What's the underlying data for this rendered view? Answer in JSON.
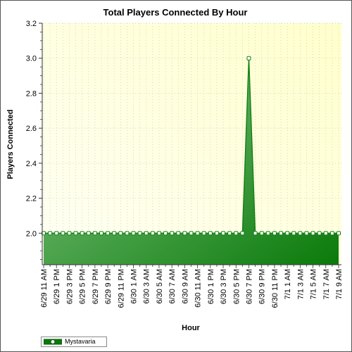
{
  "chart_data": {
    "type": "area",
    "title": "Total Players Connected By Hour",
    "xlabel": "Hour",
    "ylabel": "Players Connected",
    "ylim": [
      1.82,
      3.2
    ],
    "yticks": [
      "2.0",
      "2.2",
      "2.4",
      "2.6",
      "2.8",
      "3.0",
      "3.2"
    ],
    "yminor_step": 0.05,
    "grid": true,
    "legend_position": "bottom-left",
    "x": [
      "6/29 11 AM",
      "6/29 12 PM",
      "6/29 1 PM",
      "6/29 2 PM",
      "6/29 3 PM",
      "6/29 4 PM",
      "6/29 5 PM",
      "6/29 6 PM",
      "6/29 7 PM",
      "6/29 8 PM",
      "6/29 9 PM",
      "6/29 10 PM",
      "6/29 11 PM",
      "6/30 12 AM",
      "6/30 1 AM",
      "6/30 2 AM",
      "6/30 3 AM",
      "6/30 4 AM",
      "6/30 5 AM",
      "6/30 6 AM",
      "6/30 7 AM",
      "6/30 8 AM",
      "6/30 9 AM",
      "6/30 10 AM",
      "6/30 11 AM",
      "6/30 12 PM",
      "6/30 1 PM",
      "6/30 2 PM",
      "6/30 3 PM",
      "6/30 4 PM",
      "6/30 5 PM",
      "6/30 6 PM",
      "6/30 7 PM",
      "6/30 8 PM",
      "6/30 9 PM",
      "6/30 10 PM",
      "6/30 11 PM",
      "7/1 12 AM",
      "7/1 1 AM",
      "7/1 2 AM",
      "7/1 3 AM",
      "7/1 4 AM",
      "7/1 5 AM",
      "7/1 6 AM",
      "7/1 7 AM",
      "7/1 8 AM",
      "7/1 9 AM"
    ],
    "xtick_labels": [
      "6/29 11 AM",
      "6/29 1 PM",
      "6/29 3 PM",
      "6/29 5 PM",
      "6/29 7 PM",
      "6/29 9 PM",
      "6/29 11 PM",
      "6/30 1 AM",
      "6/30 3 AM",
      "6/30 5 AM",
      "6/30 7 AM",
      "6/30 9 AM",
      "6/30 11 AM",
      "6/30 1 PM",
      "6/30 3 PM",
      "6/30 5 PM",
      "6/30 7 PM",
      "6/30 9 PM",
      "6/30 11 PM",
      "7/1 1 AM",
      "7/1 3 AM",
      "7/1 5 AM",
      "7/1 7 AM",
      "7/1 9 AM"
    ],
    "series": [
      {
        "name": "Mystavaria",
        "color": "#1a8a1a",
        "values": [
          2,
          2,
          2,
          2,
          2,
          2,
          2,
          2,
          2,
          2,
          2,
          2,
          2,
          2,
          2,
          2,
          2,
          2,
          2,
          2,
          2,
          2,
          2,
          2,
          2,
          2,
          2,
          2,
          2,
          2,
          2,
          2,
          3,
          2,
          2,
          2,
          2,
          2,
          2,
          2,
          2,
          2,
          2,
          2,
          2,
          2,
          2
        ]
      }
    ]
  },
  "colors": {
    "plot_background_light": "#fffff5",
    "plot_background_dark": "#ffffcc",
    "area_light": "#8ccb8c",
    "area_dark": "#0a7a0a",
    "line": "#157f15"
  }
}
